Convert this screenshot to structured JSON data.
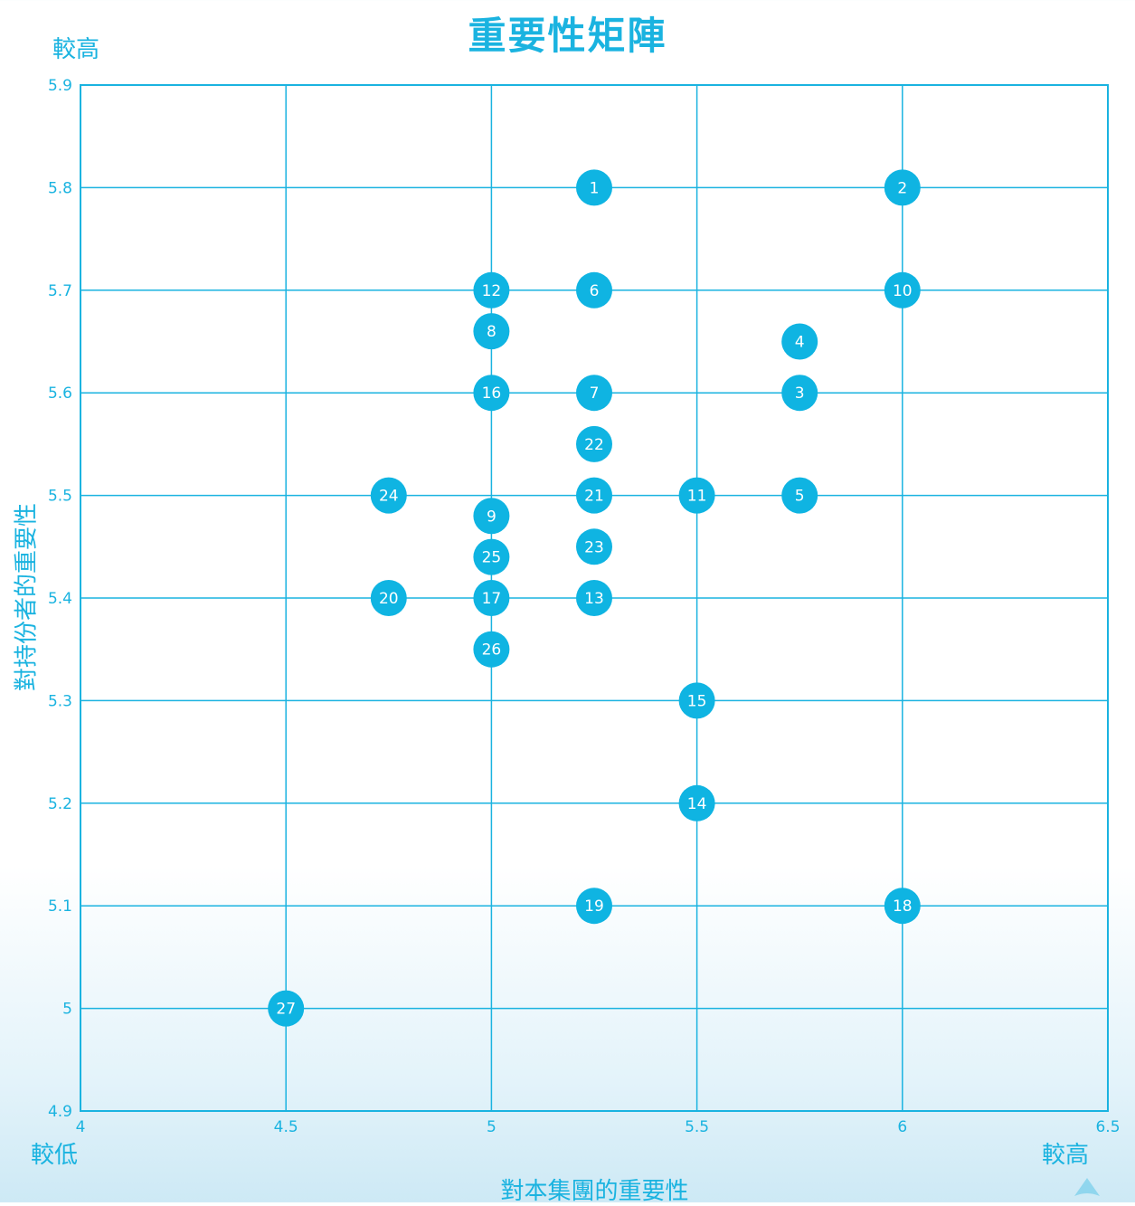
{
  "colors": {
    "accent": "#1ab3e0",
    "point": "#0fb4e2",
    "label": "#ffffff"
  },
  "labels": {
    "title": "重要性矩陣",
    "y_high": "較高",
    "x_low": "較低",
    "x_high": "較高",
    "xlabel": "對本集團的重要性",
    "ylabel": "對持份者的重要性"
  },
  "chart_data": {
    "type": "scatter",
    "title": "重要性矩陣",
    "xlabel": "對本集團的重要性",
    "ylabel": "對持份者的重要性",
    "xlim": [
      4,
      6.5
    ],
    "ylim": [
      4.9,
      5.9
    ],
    "xticks": [
      4,
      4.5,
      5,
      5.5,
      6,
      6.5
    ],
    "yticks": [
      4.9,
      5,
      5.1,
      5.2,
      5.3,
      5.4,
      5.5,
      5.6,
      5.7,
      5.8,
      5.9
    ],
    "xtick_labels": [
      "4",
      "4.5",
      "5",
      "5.5",
      "6",
      "6.5"
    ],
    "ytick_labels": [
      "4.9",
      "5",
      "5.1",
      "5.2",
      "5.3",
      "5.4",
      "5.5",
      "5.6",
      "5.7",
      "5.8",
      "5.9"
    ],
    "grid": true,
    "points": [
      {
        "label": "1",
        "x": 5.25,
        "y": 5.8
      },
      {
        "label": "2",
        "x": 6.0,
        "y": 5.8
      },
      {
        "label": "3",
        "x": 5.75,
        "y": 5.6
      },
      {
        "label": "4",
        "x": 5.75,
        "y": 5.65
      },
      {
        "label": "5",
        "x": 5.75,
        "y": 5.5
      },
      {
        "label": "6",
        "x": 5.25,
        "y": 5.7
      },
      {
        "label": "7",
        "x": 5.25,
        "y": 5.6
      },
      {
        "label": "8",
        "x": 5.0,
        "y": 5.66
      },
      {
        "label": "9",
        "x": 5.0,
        "y": 5.48
      },
      {
        "label": "10",
        "x": 6.0,
        "y": 5.7
      },
      {
        "label": "11",
        "x": 5.5,
        "y": 5.5
      },
      {
        "label": "12",
        "x": 5.0,
        "y": 5.7
      },
      {
        "label": "13",
        "x": 5.25,
        "y": 5.4
      },
      {
        "label": "14",
        "x": 5.5,
        "y": 5.2
      },
      {
        "label": "15",
        "x": 5.5,
        "y": 5.3
      },
      {
        "label": "16",
        "x": 5.0,
        "y": 5.6
      },
      {
        "label": "17",
        "x": 5.0,
        "y": 5.4
      },
      {
        "label": "18",
        "x": 6.0,
        "y": 5.1
      },
      {
        "label": "19",
        "x": 5.25,
        "y": 5.1
      },
      {
        "label": "20",
        "x": 4.75,
        "y": 5.4
      },
      {
        "label": "21",
        "x": 5.25,
        "y": 5.5
      },
      {
        "label": "22",
        "x": 5.25,
        "y": 5.55
      },
      {
        "label": "23",
        "x": 5.25,
        "y": 5.45
      },
      {
        "label": "24",
        "x": 4.75,
        "y": 5.5
      },
      {
        "label": "25",
        "x": 5.0,
        "y": 5.44
      },
      {
        "label": "26",
        "x": 5.0,
        "y": 5.35
      },
      {
        "label": "27",
        "x": 4.5,
        "y": 5.0
      }
    ]
  }
}
